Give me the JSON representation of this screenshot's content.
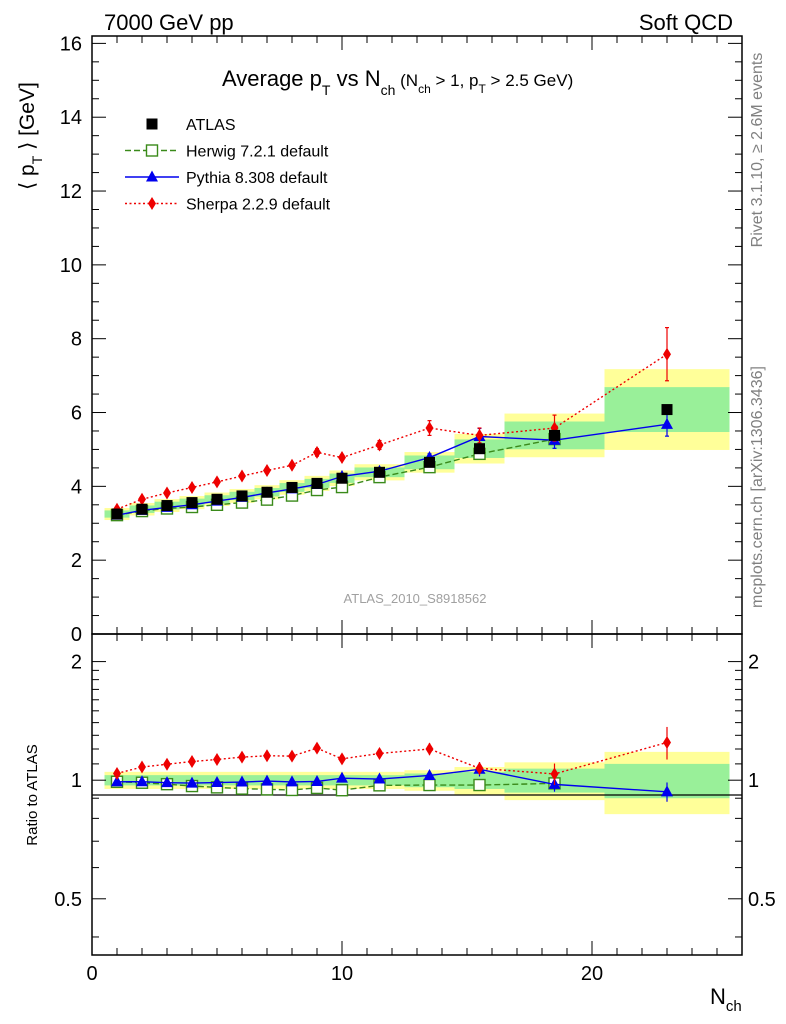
{
  "header": {
    "left": "7000 GeV pp",
    "right": "Soft QCD"
  },
  "side_labels": {
    "rivet": "Rivet 3.1.10, ≥ 2.6M events",
    "mcplots": "mcplots.cern.ch [arXiv:1306.3436]"
  },
  "chart_data": {
    "type": "scatter",
    "title": {
      "main": "Average p",
      "main_sub": "T",
      "vs": " vs N",
      "vs_sub": "ch",
      "cut_a": " (N",
      "cut_a_sub": "ch",
      "cut_b": " > 1, p",
      "cut_b_sub": "T",
      "cut_c": " > 2.5 GeV)"
    },
    "watermark": "ATLAS_2010_S8918562",
    "ylabel": {
      "open": "⟨ p",
      "sub": "T",
      "close": " ⟩ [GeV]"
    },
    "xlabel": {
      "main": "N",
      "sub": "ch"
    },
    "ratio_ylabel": "Ratio to ATLAS",
    "xlim": [
      0,
      26
    ],
    "ylim": [
      0,
      16.2
    ],
    "ratio_ylim": [
      0.36,
      2.35
    ],
    "x_ticks": [
      "0",
      "10",
      "20"
    ],
    "y_ticks": [
      "0",
      "2",
      "4",
      "6",
      "8",
      "10",
      "12",
      "14",
      "16"
    ],
    "ratio_ticks": [
      "0.5",
      "1",
      "2"
    ],
    "bins": [
      [
        0.5,
        1.5
      ],
      [
        1.5,
        2.5
      ],
      [
        2.5,
        3.5
      ],
      [
        3.5,
        4.5
      ],
      [
        4.5,
        5.5
      ],
      [
        5.5,
        6.5
      ],
      [
        6.5,
        7.5
      ],
      [
        7.5,
        8.5
      ],
      [
        8.5,
        9.5
      ],
      [
        9.5,
        10.5
      ],
      [
        10.5,
        12.5
      ],
      [
        12.5,
        14.5
      ],
      [
        14.5,
        16.5
      ],
      [
        16.5,
        20.5
      ],
      [
        20.5,
        25.5
      ]
    ],
    "x": [
      1,
      2,
      3,
      4,
      5,
      6,
      7,
      8,
      9,
      10,
      11.5,
      13.5,
      15.5,
      18.5,
      23
    ],
    "band_inner": [
      0.03,
      0.03,
      0.03,
      0.03,
      0.03,
      0.03,
      0.03,
      0.03,
      0.03,
      0.03,
      0.03,
      0.04,
      0.05,
      0.07,
      0.1
    ],
    "band_outer": [
      0.05,
      0.05,
      0.05,
      0.05,
      0.05,
      0.05,
      0.05,
      0.05,
      0.05,
      0.05,
      0.05,
      0.06,
      0.08,
      0.11,
      0.18
    ],
    "series": [
      {
        "name": "ATLAS",
        "color": "#000000",
        "marker": "square",
        "line": "none",
        "values": [
          3.25,
          3.38,
          3.48,
          3.56,
          3.65,
          3.74,
          3.84,
          3.97,
          4.08,
          4.22,
          4.38,
          4.65,
          5.02,
          5.38,
          6.08
        ]
      },
      {
        "name": "Herwig 7.2.1 default",
        "color": "#3a8a1a",
        "marker": "open-square",
        "line": "dashed",
        "values": [
          3.22,
          3.33,
          3.4,
          3.44,
          3.5,
          3.56,
          3.64,
          3.75,
          3.9,
          3.98,
          4.25,
          4.52,
          4.88,
          5.28,
          null
        ]
      },
      {
        "name": "Pythia 8.308 default",
        "color": "#0000ee",
        "marker": "triangle",
        "line": "solid",
        "values": [
          3.22,
          3.35,
          3.43,
          3.5,
          3.6,
          3.7,
          3.82,
          3.93,
          4.05,
          4.27,
          4.41,
          4.78,
          5.35,
          5.25,
          5.68
        ],
        "errors": [
          0,
          0,
          0,
          0,
          0,
          0,
          0,
          0,
          0,
          0,
          0,
          0.1,
          0.22,
          0.22,
          0.32
        ]
      },
      {
        "name": "Sherpa 2.2.9 default",
        "color": "#ee0000",
        "marker": "diamond",
        "line": "dotted",
        "values": [
          3.38,
          3.65,
          3.82,
          3.97,
          4.12,
          4.28,
          4.43,
          4.57,
          4.92,
          4.78,
          5.12,
          5.58,
          5.38,
          5.58,
          7.58
        ],
        "errors": [
          0,
          0,
          0,
          0,
          0,
          0,
          0,
          0,
          0.1,
          0,
          0.12,
          0.2,
          0.2,
          0.35,
          0.72
        ]
      }
    ]
  }
}
